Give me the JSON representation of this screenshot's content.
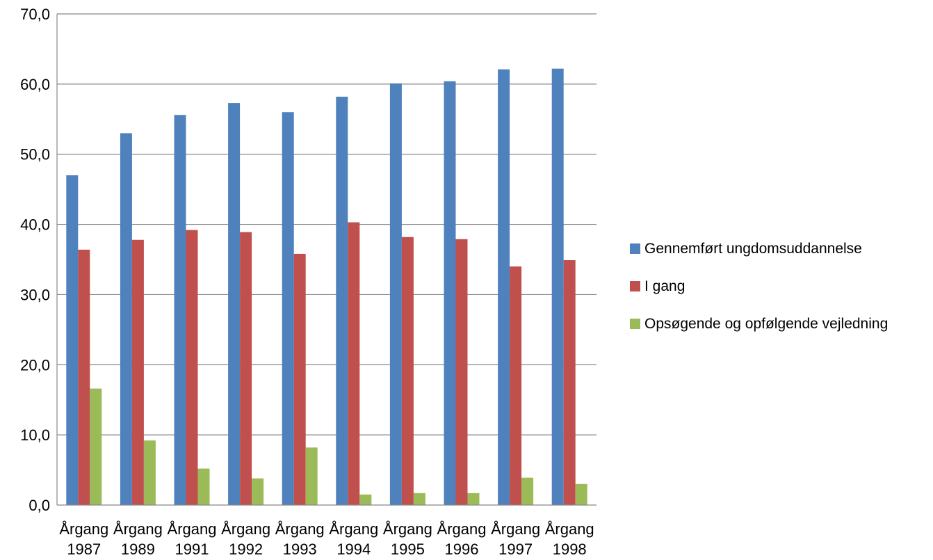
{
  "chart_data": {
    "type": "bar",
    "categories": [
      [
        "Årgang",
        "1987"
      ],
      [
        "Årgang",
        "1989"
      ],
      [
        "Årgang",
        "1991"
      ],
      [
        "Årgang",
        "1992"
      ],
      [
        "Årgang",
        "1993"
      ],
      [
        "Årgang",
        "1994"
      ],
      [
        "Årgang",
        "1995"
      ],
      [
        "Årgang",
        "1996"
      ],
      [
        "Årgang",
        "1997"
      ],
      [
        "Årgang",
        "1998"
      ]
    ],
    "series": [
      {
        "name": "Gennemført ungdomsuddannelse",
        "color": "#4F81BD",
        "values": [
          47.0,
          53.0,
          55.6,
          57.3,
          56.0,
          58.2,
          60.1,
          60.4,
          62.1,
          62.2
        ]
      },
      {
        "name": "I gang",
        "color": "#C0504D",
        "values": [
          36.4,
          37.8,
          39.2,
          38.9,
          35.8,
          40.3,
          38.2,
          37.9,
          34.0,
          34.9
        ]
      },
      {
        "name": "Opsøgende og opfølgende vejledning",
        "color": "#9BBB59",
        "values": [
          16.6,
          9.2,
          5.2,
          3.8,
          8.2,
          1.5,
          1.7,
          1.7,
          3.9,
          3.0
        ]
      }
    ],
    "y_ticks": [
      "0,0",
      "10,0",
      "20,0",
      "30,0",
      "40,0",
      "50,0",
      "60,0",
      "70,0"
    ],
    "ylim": [
      0,
      70
    ],
    "grid": true,
    "legend_position": "right"
  }
}
